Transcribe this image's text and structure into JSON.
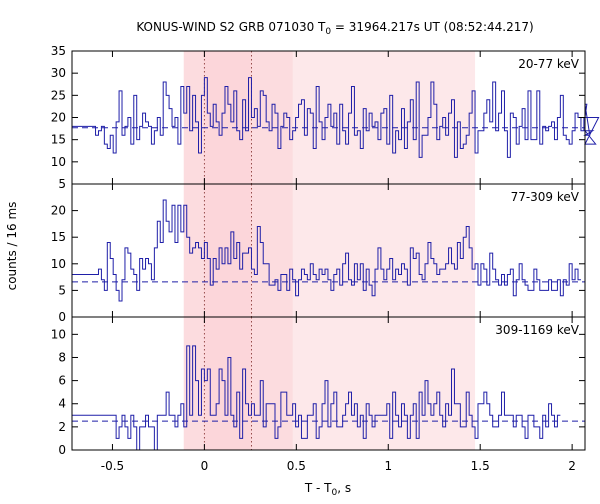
{
  "chart_data": {
    "type": "line",
    "title_prefix": "KONUS-WIND S2 GRB 071030 T",
    "title_sub": "0",
    "title_suffix": " = 31964.217s UT (08:52:44.217)",
    "xlabel_prefix": "T - T",
    "xlabel_sub": "0",
    "xlabel_suffix": ", s",
    "ylabel": "counts / 16 ms",
    "xlim": [
      -0.72,
      2.07
    ],
    "x_ticks": [
      -0.5,
      0,
      0.5,
      1,
      1.5,
      2
    ],
    "x_tick_labels": [
      "-0.5",
      "0",
      "0.5",
      "1",
      "1.5",
      "2"
    ],
    "bin_width_s": 0.016,
    "shaded_intervals": [
      {
        "from": -0.112,
        "to": 1.472,
        "color": "#fde8ea"
      },
      {
        "from": -0.112,
        "to": 0.48,
        "color": "#fbd2d6"
      },
      {
        "from": 0.0,
        "to": 0.256,
        "color": "#fbd2d6"
      }
    ],
    "vertical_markers": [
      0.0,
      0.256
    ],
    "line_color": "#1f1fa8",
    "panels": [
      {
        "label": "20-77 keV",
        "ylim": [
          5,
          35
        ],
        "yticks": [
          5,
          10,
          15,
          20,
          25,
          30,
          35
        ],
        "background_level": 17.7,
        "x_start": -0.608,
        "values": [
          18,
          16,
          17,
          18,
          14,
          13,
          16,
          12,
          19,
          26,
          16,
          18,
          20,
          14,
          25,
          15,
          18,
          21,
          19,
          18,
          14,
          17,
          20,
          16,
          28,
          25,
          22,
          18,
          20,
          14,
          27,
          21,
          27,
          17,
          25,
          19,
          12,
          25,
          29,
          21,
          18,
          23,
          19,
          16,
          21,
          27,
          23,
          19,
          26,
          17,
          15,
          24,
          17,
          29,
          20,
          22,
          18,
          26,
          25,
          19,
          17,
          23,
          21,
          13,
          18,
          21,
          20,
          15,
          17,
          20,
          23,
          24,
          16,
          22,
          21,
          13,
          27,
          19,
          15,
          20,
          23,
          18,
          21,
          14,
          23,
          17,
          14,
          21,
          27,
          16,
          17,
          13,
          22,
          17,
          21,
          18,
          19,
          15,
          21,
          22,
          14,
          25,
          12,
          17,
          15,
          22,
          13,
          19,
          24,
          15,
          28,
          11,
          16,
          16,
          20,
          28,
          23,
          15,
          18,
          20,
          16,
          21,
          24,
          11,
          19,
          13,
          14,
          16,
          21,
          26,
          12,
          17,
          17,
          21,
          24,
          19,
          28,
          17,
          21,
          26,
          17,
          11,
          21,
          20,
          14,
          18,
          22,
          15,
          26,
          15,
          15,
          26,
          14,
          18,
          17,
          18,
          19,
          15,
          20,
          25,
          16,
          15,
          14,
          17,
          21,
          20,
          17,
          20,
          23,
          16,
          17,
          14,
          20
        ]
      },
      {
        "label": "77-309 keV",
        "ylim": [
          0,
          25
        ],
        "yticks": [
          0,
          5,
          10,
          15,
          20
        ],
        "background_level": 6.6,
        "x_start": -0.592,
        "values": [
          8,
          9,
          7,
          5,
          14,
          11,
          8,
          5,
          3,
          7,
          13,
          12,
          9,
          8,
          5,
          11,
          9,
          11,
          10,
          7,
          13,
          18,
          14,
          22,
          18,
          16,
          21,
          14,
          21,
          16,
          21,
          15,
          12,
          13,
          14,
          13,
          11,
          14,
          11,
          6,
          11,
          9,
          13,
          10,
          13,
          10,
          16,
          11,
          14,
          9,
          12,
          12,
          13,
          9,
          8,
          17,
          14,
          10,
          10,
          6,
          6,
          7,
          5,
          8,
          8,
          5,
          9,
          7,
          4,
          7,
          9,
          8,
          7,
          10,
          8,
          7,
          9,
          8,
          9,
          7,
          5,
          8,
          9,
          6,
          10,
          12,
          7,
          6,
          10,
          7,
          10,
          5,
          9,
          6,
          4,
          9,
          13,
          9,
          7,
          9,
          11,
          7,
          9,
          8,
          10,
          9,
          6,
          13,
          11,
          12,
          8,
          7,
          10,
          14,
          11,
          10,
          8,
          9,
          9,
          10,
          13,
          10,
          9,
          14,
          11,
          15,
          17,
          13,
          9,
          10,
          6,
          10,
          9,
          6,
          12,
          9,
          7,
          6,
          8,
          6,
          8,
          9,
          4,
          7,
          10,
          7,
          6,
          5,
          5,
          9,
          7,
          5,
          5,
          5,
          7,
          5,
          5,
          7,
          4,
          7,
          6,
          10,
          7,
          9,
          7
        ]
      },
      {
        "label": "309-1169 keV",
        "ylim": [
          0,
          11.5
        ],
        "yticks": [
          0,
          2,
          4,
          6,
          8,
          10
        ],
        "background_level": 2.5,
        "x_start": -0.496,
        "values": [
          3,
          1,
          2,
          3,
          2,
          1,
          3,
          2,
          0,
          2,
          2,
          3,
          2,
          2,
          0,
          3,
          3,
          3,
          5,
          3,
          3,
          2,
          3,
          4,
          2,
          9,
          3,
          9,
          6,
          3,
          7,
          6,
          7,
          3,
          3,
          4,
          7,
          6,
          3,
          8,
          3,
          2,
          5,
          1,
          7,
          4,
          3,
          4,
          3,
          3,
          6,
          2,
          4,
          4,
          4,
          1,
          2,
          5,
          5,
          3,
          3,
          4,
          2,
          3,
          1,
          1,
          3,
          3,
          4,
          1,
          2,
          4,
          6,
          2,
          4,
          5,
          2,
          2,
          3,
          4,
          5,
          3,
          4,
          2,
          3,
          1,
          4,
          3,
          2,
          3,
          3,
          3,
          3,
          4,
          1,
          5,
          3,
          2,
          4,
          3,
          1,
          3,
          4,
          1,
          5,
          3,
          6,
          4,
          3,
          4,
          5,
          3,
          2,
          4,
          3,
          7,
          4,
          4,
          2,
          2,
          5,
          3,
          2,
          1,
          4,
          4,
          5,
          4,
          3,
          2,
          2,
          3,
          5,
          3,
          3,
          3,
          2,
          3,
          3,
          2,
          1,
          3,
          3,
          2,
          2,
          1,
          3,
          2,
          4,
          3,
          2,
          3
        ]
      }
    ]
  }
}
